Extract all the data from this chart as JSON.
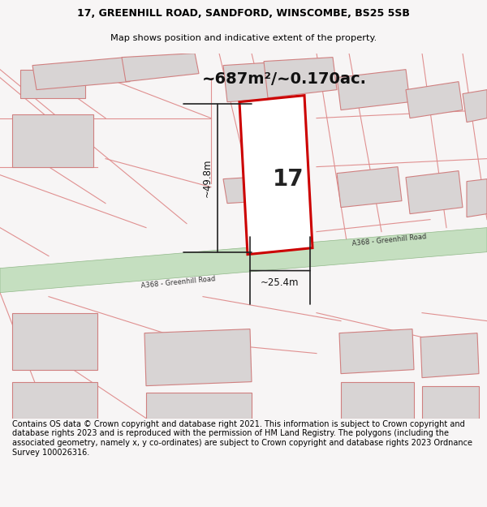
{
  "title_line1": "17, GREENHILL ROAD, SANDFORD, WINSCOMBE, BS25 5SB",
  "title_line2": "Map shows position and indicative extent of the property.",
  "footer_text": "Contains OS data © Crown copyright and database right 2021. This information is subject to Crown copyright and database rights 2023 and is reproduced with the permission of HM Land Registry. The polygons (including the associated geometry, namely x, y co-ordinates) are subject to Crown copyright and database rights 2023 Ordnance Survey 100026316.",
  "area_text": "~687m²/~0.170ac.",
  "label_17": "17",
  "dim_height": "~49.8m",
  "dim_width": "~25.4m",
  "road_label": "A368 - Greenhill Road",
  "road_label2": "A368 - Greenhill Road",
  "bg_color": "#f7f5f5",
  "map_bg": "#f7f5f5",
  "plot_fill": "#ffffff",
  "plot_edge": "#cc0000",
  "road_fill": "#c5dfc0",
  "road_edge": "#90b888",
  "building_fill": "#d8d4d4",
  "building_edge": "#d08080",
  "dim_line_color": "#222222",
  "title_fontsize": 9.0,
  "subtitle_fontsize": 8.2,
  "footer_fontsize": 7.0,
  "area_fontsize": 14,
  "label_fontsize": 20,
  "dim_fontsize": 8.5,
  "road_fontsize": 6.0
}
